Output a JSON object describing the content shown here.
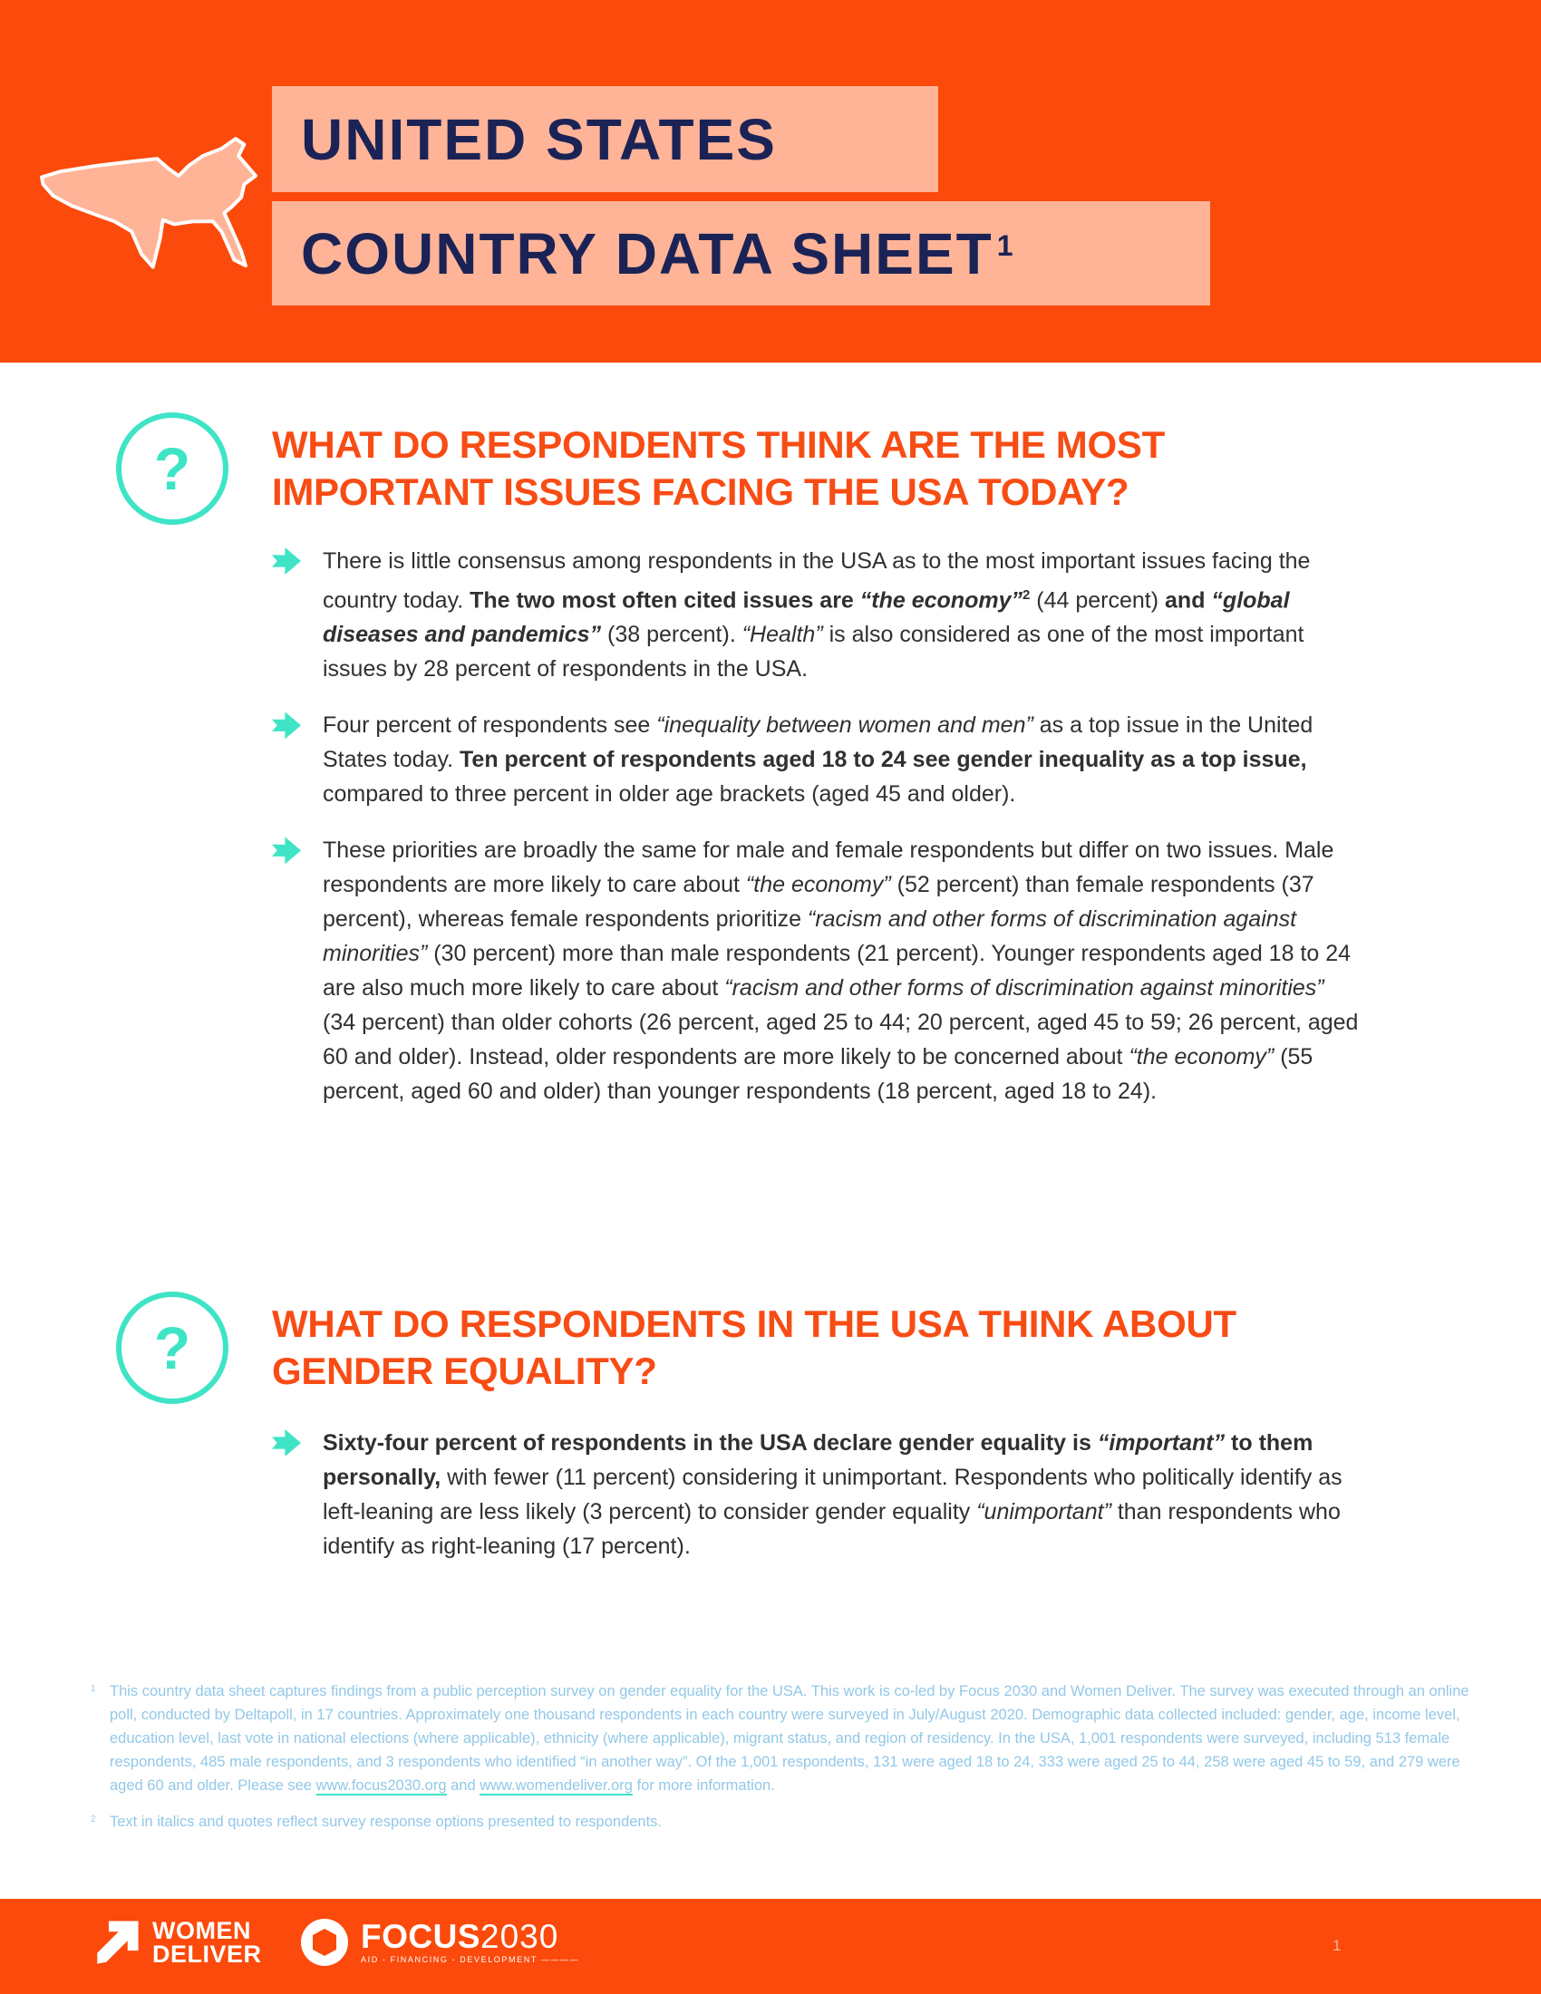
{
  "header": {
    "title_line1": "UNITED STATES",
    "title_line2": "COUNTRY DATA SHEET",
    "title_superscript": "1"
  },
  "colors": {
    "banner_orange": "#FB4A0B",
    "peach": "#FFB497",
    "navy": "#1B2356",
    "heading_orange": "#F84C15",
    "teal": "#3EE4C5",
    "body_text": "#303030",
    "footnote_blue": "#92C8E8"
  },
  "sections": [
    {
      "question_mark": "?",
      "heading": "WHAT DO RESPONDENTS THINK ARE THE MOST\nIMPORTANT ISSUES FACING THE USA TODAY?",
      "bullets": [
        {
          "runs": [
            {
              "t": "There is little consensus among respondents in the USA as to the most important issues facing the country today. ",
              "s": "n"
            },
            {
              "t": "The two most often cited issues are ",
              "s": "b"
            },
            {
              "t": "“the economy”",
              "s": "bi"
            },
            {
              "t": "2",
              "s": "sup"
            },
            {
              "t": " (44 percent) ",
              "s": "n"
            },
            {
              "t": "and ",
              "s": "b"
            },
            {
              "t": "“global diseases and pandemics”",
              "s": "bi"
            },
            {
              "t": " (38 percent). ",
              "s": "n"
            },
            {
              "t": "“Health”",
              "s": "i"
            },
            {
              "t": " is also considered as one of the most important issues by 28 percent of respondents in the USA.",
              "s": "n"
            }
          ]
        },
        {
          "runs": [
            {
              "t": "Four percent of respondents see ",
              "s": "n"
            },
            {
              "t": "“inequality between women and men”",
              "s": "i"
            },
            {
              "t": " as a top issue in the United States today. ",
              "s": "n"
            },
            {
              "t": "Ten percent of respondents aged 18 to 24 see gender inequality as a top issue,",
              "s": "b"
            },
            {
              "t": " compared to three percent in older age brackets (aged 45 and older).",
              "s": "n"
            }
          ]
        },
        {
          "runs": [
            {
              "t": "These priorities are broadly the same for male and female respondents but differ on two issues. Male respondents are more likely to care about ",
              "s": "n"
            },
            {
              "t": "“the economy”",
              "s": "i"
            },
            {
              "t": " (52 percent) than female respondents (37 percent), whereas female respondents prioritize ",
              "s": "n"
            },
            {
              "t": "“racism and other forms of discrimination against minorities”",
              "s": "i"
            },
            {
              "t": " (30 percent) more than male respondents (21 percent). Younger respondents aged 18 to 24 are also much more likely to care about ",
              "s": "n"
            },
            {
              "t": "“racism and other forms of discrimination against minorities”",
              "s": "i"
            },
            {
              "t": " (34 percent) than older cohorts (26 percent, aged 25 to 44; 20 percent, aged 45 to 59; 26 percent, aged 60 and older). Instead, older respondents are more likely to be concerned about ",
              "s": "n"
            },
            {
              "t": "“the economy”",
              "s": "i"
            },
            {
              "t": " (55 percent, aged 60 and older) than younger respondents (18 percent, aged 18 to 24).",
              "s": "n"
            }
          ]
        }
      ]
    },
    {
      "question_mark": "?",
      "heading": "WHAT DO RESPONDENTS IN THE USA THINK ABOUT\nGENDER EQUALITY?",
      "bullets": [
        {
          "runs": [
            {
              "t": "Sixty-four percent of respondents in the USA declare gender equality is ",
              "s": "b"
            },
            {
              "t": "“important”",
              "s": "bi"
            },
            {
              "t": " to them personally,",
              "s": "b"
            },
            {
              "t": " with fewer (11 percent) considering it unimportant. Respondents who politically identify as left-leaning are less likely (3 percent) to consider gender equality ",
              "s": "n"
            },
            {
              "t": "“unimportant”",
              "s": "i"
            },
            {
              "t": " than respondents who identify as right-leaning (17 percent).",
              "s": "n"
            }
          ]
        }
      ]
    }
  ],
  "footnotes": [
    {
      "number": "1",
      "runs": [
        {
          "t": "This country data sheet captures findings from a public perception survey on gender equality for the USA. This work is co-led by Focus 2030 and Women Deliver. The survey was executed through an online poll, conducted by Deltapoll, in 17 countries. Approximately one thousand respondents in each country were surveyed in July/August 2020. Demographic data collected included: gender, age, income level, education level, last vote in national elections (where applicable), ethnicity (where applicable), migrant status, and region of residency. In the USA, 1,001 respondents were surveyed, including 513 female respondents, 485 male respondents, and 3 respondents who identified “in another way”. Of the 1,001 respondents, 131 were aged 18 to 24, 333 were aged 25 to 44, 258 were aged 45 to 59, and 279 were aged 60 and older. Please see ",
          "s": "n"
        },
        {
          "t": "www.focus2030.org",
          "s": "link"
        },
        {
          "t": " and ",
          "s": "n"
        },
        {
          "t": "www.womendeliver.org",
          "s": "link"
        },
        {
          "t": " for more information.",
          "s": "n"
        }
      ]
    },
    {
      "number": "2",
      "runs": [
        {
          "t": "Text in italics and quotes reflect survey response options presented to respondents.",
          "s": "n"
        }
      ]
    }
  ],
  "footer": {
    "women_deliver": {
      "line1": "WOMEN",
      "line2": "DELIVER"
    },
    "focus2030": {
      "name": "FOCUS",
      "year": "2030",
      "tagline": "AID - FINANCING - DEVELOPMENT ————"
    },
    "page_number": "1"
  }
}
